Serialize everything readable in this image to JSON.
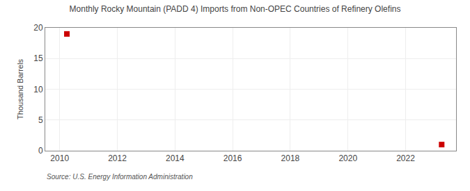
{
  "chart_data": {
    "type": "scatter",
    "title": "Monthly Rocky Mountain (PADD 4) Imports from Non-OPEC Countries of Refinery Olefins",
    "ylabel": "Thousand Barrels",
    "annotations": [
      "Source: U.S. Energy Information Administration"
    ],
    "x": [
      2010.25,
      2023.25
    ],
    "values": [
      19,
      1
    ],
    "color": "#cc0000",
    "marker": "square",
    "xlim": [
      2009.5,
      2023.75
    ],
    "ylim": [
      0,
      20
    ],
    "xticks": [
      2010,
      2012,
      2014,
      2016,
      2018,
      2020,
      2022
    ],
    "yticks": [
      0,
      5,
      10,
      15,
      20
    ],
    "grid": true
  }
}
